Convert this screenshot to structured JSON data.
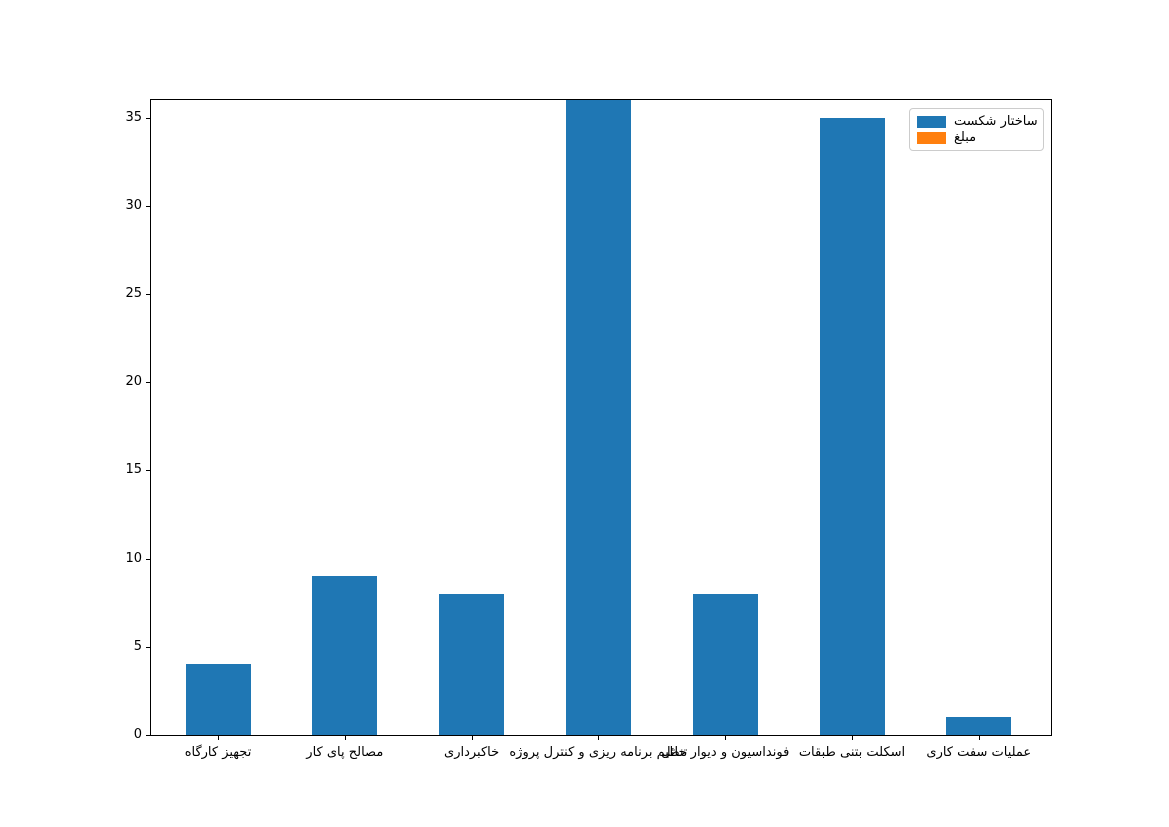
{
  "chart_data": {
    "type": "bar",
    "categories": [
      "تجهیز کارگاه",
      "مصالح پای کار",
      "خاکبرداری",
      "تنظیم برنامه ریزی و کنترل پروژه",
      "فونداسیون و دیوار حائل",
      "اسکلت بتنی طبقات",
      "عملیات سفت کاری"
    ],
    "series": [
      {
        "name": "ساختار شکست",
        "color": "#1f77b4",
        "values": [
          4,
          9,
          8,
          36,
          8,
          35,
          1
        ]
      }
    ],
    "legend": [
      {
        "label": "ساختار شکست",
        "color": "#1f77b4"
      },
      {
        "label": "مبلغ",
        "color": "#ff7f0e"
      }
    ],
    "title": "",
    "xlabel": "",
    "ylabel": "",
    "ylim": [
      0,
      36
    ],
    "yticks": [
      0,
      5,
      10,
      15,
      20,
      25,
      30,
      35
    ],
    "grid": false,
    "legend_position": "upper right"
  },
  "colors": {
    "bar_blue": "#1f77b4",
    "legend_orange": "#ff7f0e",
    "spine": "#000000",
    "legend_border": "#cccccc",
    "background": "#ffffff"
  }
}
